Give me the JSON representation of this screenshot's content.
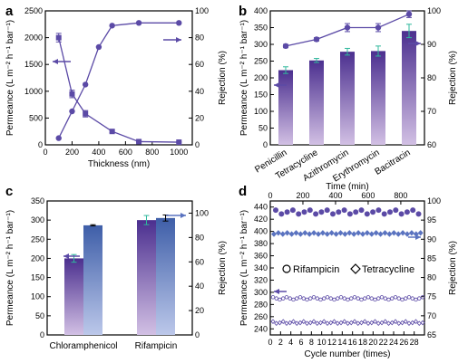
{
  "colors": {
    "purple": "#5b4aa6",
    "bar_top": "#4b2f8f",
    "bar_bottom": "#c7b3dc",
    "bar_blue_top": "#3e5ea8",
    "bar_blue_bottom": "#b4c2e6",
    "err": "#2fb89c",
    "blue_line": "#5a73c0",
    "grid_line": "#8888cc"
  },
  "chart_data": [
    {
      "panel": "a",
      "type": "line",
      "xlabel": "Thickness (nm)",
      "ylabel": "Permeance (L m⁻² h⁻¹ bar⁻¹)",
      "ylabel_right": "Rejection (%)",
      "xlim": [
        0,
        1100
      ],
      "ylim": [
        0,
        2500
      ],
      "ylim_right": [
        0,
        100
      ],
      "xticks": [
        "0",
        "200",
        "400",
        "600",
        "800",
        "1000"
      ],
      "yticks": [
        "0",
        "500",
        "1000",
        "1500",
        "2000",
        "2500"
      ],
      "yticks_right": [
        "0",
        "20",
        "40",
        "60",
        "80",
        "100"
      ],
      "series": [
        {
          "axis": "left",
          "marker": "square",
          "x": [
            100,
            200,
            300,
            500,
            700,
            1000
          ],
          "values": [
            2000,
            950,
            580,
            250,
            60,
            50
          ],
          "errors": [
            80,
            70,
            60,
            20,
            10,
            10
          ]
        },
        {
          "axis": "right",
          "marker": "circle",
          "x": [
            100,
            200,
            300,
            400,
            500,
            700,
            1000
          ],
          "values": [
            5,
            25,
            45,
            73,
            89,
            91,
            91
          ]
        }
      ]
    },
    {
      "panel": "b",
      "type": "bar",
      "ylabel": "Permeance (L m⁻² h⁻¹ bar⁻¹)",
      "ylabel_right": "Rejection (%)",
      "categories": [
        "Penicillin",
        "Tetracycline",
        "Azithromycin",
        "Erythromycin",
        "Bacitracin"
      ],
      "ylim": [
        0,
        400
      ],
      "ylim_right": [
        60,
        100
      ],
      "yticks": [
        "0",
        "50",
        "100",
        "150",
        "200",
        "250",
        "300",
        "350",
        "400"
      ],
      "yticks_right": [
        "60",
        "70",
        "80",
        "90",
        "100"
      ],
      "bars": [
        223,
        252,
        278,
        280,
        340
      ],
      "bar_errors": [
        10,
        6,
        10,
        15,
        20
      ],
      "rejection": [
        89.5,
        91.5,
        95,
        95,
        99
      ],
      "rejection_errors": [
        0.5,
        0.5,
        1.2,
        1.2,
        1.0
      ]
    },
    {
      "panel": "c",
      "type": "bar",
      "ylabel": "Permeance (L m⁻² h⁻¹ bar⁻¹)",
      "ylabel_right": "Rejection (%)",
      "categories": [
        "Chloramphenicol",
        "Rifampicin"
      ],
      "ylim": [
        0,
        350
      ],
      "ylim_right": [
        0,
        110
      ],
      "yticks": [
        "0",
        "50",
        "100",
        "150",
        "200",
        "250",
        "300",
        "350"
      ],
      "yticks_right": [
        "0",
        "20",
        "40",
        "60",
        "80",
        "100"
      ],
      "permeance": [
        200,
        300
      ],
      "permeance_errors": [
        10,
        12
      ],
      "rejection": [
        90,
        96
      ],
      "rejection_errors": [
        0.5,
        2.5
      ]
    },
    {
      "panel": "d",
      "type": "line",
      "xlabel": "Cycle number (times)",
      "xlabel_top": "Time (min)",
      "ylabel": "Permeance (L m⁻² h⁻¹ bar⁻¹)",
      "ylabel_right": "Rejection (%)",
      "xlim": [
        0,
        30
      ],
      "ylim": [
        230,
        450
      ],
      "ylim_right": [
        65,
        100
      ],
      "xticks": [
        "0",
        "2",
        "4",
        "6",
        "8",
        "10",
        "12",
        "14",
        "16",
        "18",
        "20",
        "22",
        "24",
        "26",
        "28"
      ],
      "xticks_top": [
        "0",
        "200",
        "400",
        "600",
        "800"
      ],
      "yticks": [
        "240",
        "260",
        "280",
        "300",
        "320",
        "340",
        "360",
        "380",
        "400",
        "420",
        "440"
      ],
      "yticks_right": [
        "65",
        "70",
        "75",
        "80",
        "85",
        "90",
        "95",
        "100"
      ],
      "legend": [
        "Rifampicin",
        "Tetracycline"
      ],
      "series": [
        {
          "name": "Rifampicin",
          "axis": "right",
          "marker": "circle",
          "values_approx": 97.0
        },
        {
          "name": "Tetracycline",
          "axis": "right",
          "marker": "diamond",
          "values_approx": 91.5
        },
        {
          "name": "Rifampicin",
          "axis": "left",
          "marker": "circle-open",
          "values_approx": 290
        },
        {
          "name": "Tetracycline",
          "axis": "left",
          "marker": "diamond-open",
          "values_approx": 250
        }
      ]
    }
  ]
}
